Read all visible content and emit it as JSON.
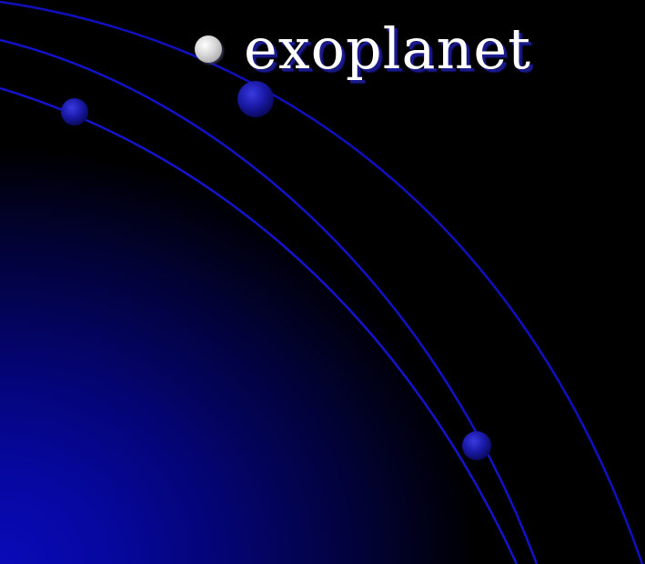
{
  "slide": {
    "title": "exoplanet",
    "background_dark": "#000000",
    "background_glow": "#0a0ab8",
    "orbit_color": "#1010c8",
    "planet_color": "#1818a8",
    "bullet_color": "#d4d4d4",
    "bullet_icon": "bullet-dot-icon",
    "planet_icon": "planet-icon"
  }
}
